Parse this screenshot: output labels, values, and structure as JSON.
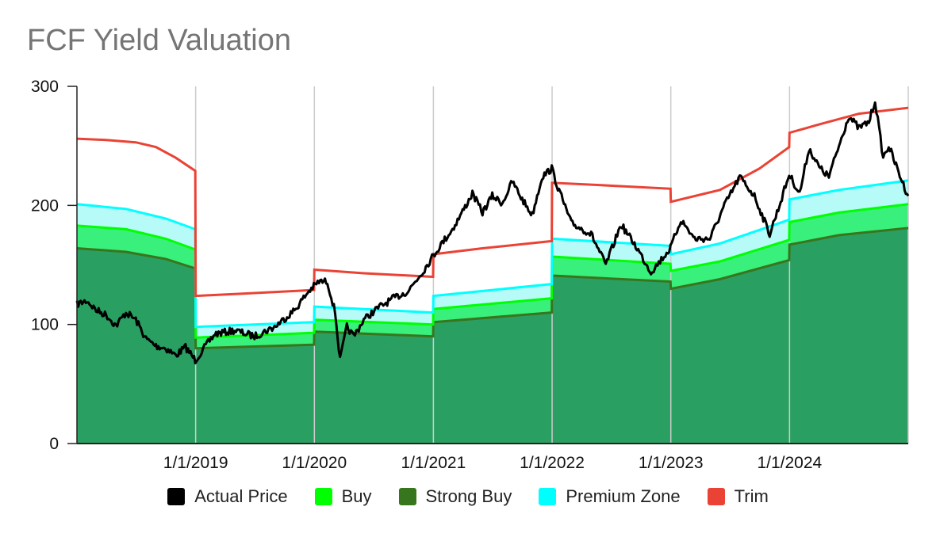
{
  "chart_data": {
    "type": "area",
    "title": "FCF Yield Valuation",
    "ylim": [
      0,
      300
    ],
    "yticks": [
      0,
      100,
      200,
      300
    ],
    "xlim": [
      "2018-01-01",
      "2024-12-31"
    ],
    "xticks": [
      "1/1/2019",
      "1/1/2020",
      "1/1/2021",
      "1/1/2022",
      "1/1/2023",
      "1/1/2024"
    ],
    "grid": "vertical",
    "legend_position": "bottom",
    "colors": {
      "actual_price": "#000000",
      "buy": "#00ff00",
      "strong_buy": "#38761d",
      "premium_zone": "#00ffff",
      "trim": "#ea4335",
      "strong_buy_fill": "#2a9f62",
      "buy_fill": "#39f07c",
      "premium_fill": "#b6fbf7",
      "axis": "#222222",
      "grid": "#cccccc"
    },
    "series": [
      {
        "name": "Trim",
        "key": "trim",
        "points": [
          [
            "2018-01-01",
            256
          ],
          [
            "2018-04-01",
            255
          ],
          [
            "2018-07-01",
            253
          ],
          [
            "2018-09-01",
            249
          ],
          [
            "2018-11-01",
            240
          ],
          [
            "2018-12-31",
            229
          ],
          [
            "2019-01-01",
            124
          ],
          [
            "2019-06-01",
            126
          ],
          [
            "2019-12-31",
            129
          ],
          [
            "2020-01-01",
            146
          ],
          [
            "2020-06-01",
            143
          ],
          [
            "2020-12-31",
            140
          ],
          [
            "2021-01-01",
            159
          ],
          [
            "2021-06-01",
            164
          ],
          [
            "2021-12-31",
            170
          ],
          [
            "2022-01-01",
            219
          ],
          [
            "2022-06-01",
            217
          ],
          [
            "2022-12-31",
            214
          ],
          [
            "2023-01-01",
            203
          ],
          [
            "2023-06-01",
            213
          ],
          [
            "2023-10-01",
            231
          ],
          [
            "2023-12-31",
            249
          ],
          [
            "2024-01-01",
            261
          ],
          [
            "2024-04-01",
            268
          ],
          [
            "2024-08-01",
            277
          ],
          [
            "2024-12-31",
            282
          ]
        ]
      },
      {
        "name": "Premium Zone",
        "key": "premium_zone",
        "points": [
          [
            "2018-01-01",
            201
          ],
          [
            "2018-06-01",
            197
          ],
          [
            "2018-10-01",
            189
          ],
          [
            "2018-12-31",
            180
          ],
          [
            "2019-01-01",
            98
          ],
          [
            "2019-12-31",
            102
          ],
          [
            "2020-01-01",
            115
          ],
          [
            "2020-12-31",
            110
          ],
          [
            "2021-01-01",
            124
          ],
          [
            "2021-12-31",
            134
          ],
          [
            "2022-01-01",
            172
          ],
          [
            "2022-12-31",
            166
          ],
          [
            "2023-01-01",
            159
          ],
          [
            "2023-06-01",
            168
          ],
          [
            "2023-12-31",
            188
          ],
          [
            "2024-01-01",
            205
          ],
          [
            "2024-06-01",
            213
          ],
          [
            "2024-12-31",
            221
          ]
        ]
      },
      {
        "name": "Buy",
        "key": "buy",
        "points": [
          [
            "2018-01-01",
            183
          ],
          [
            "2018-06-01",
            180
          ],
          [
            "2018-10-01",
            172
          ],
          [
            "2018-12-31",
            163
          ],
          [
            "2019-01-01",
            89
          ],
          [
            "2019-12-31",
            93
          ],
          [
            "2020-01-01",
            104
          ],
          [
            "2020-12-31",
            100
          ],
          [
            "2021-01-01",
            113
          ],
          [
            "2021-12-31",
            122
          ],
          [
            "2022-01-01",
            157
          ],
          [
            "2022-12-31",
            151
          ],
          [
            "2023-01-01",
            145
          ],
          [
            "2023-06-01",
            153
          ],
          [
            "2023-12-31",
            171
          ],
          [
            "2024-01-01",
            186
          ],
          [
            "2024-06-01",
            194
          ],
          [
            "2024-12-31",
            201
          ]
        ]
      },
      {
        "name": "Strong Buy",
        "key": "strong_buy",
        "points": [
          [
            "2018-01-01",
            164
          ],
          [
            "2018-06-01",
            161
          ],
          [
            "2018-10-01",
            155
          ],
          [
            "2018-12-31",
            147
          ],
          [
            "2019-01-01",
            80
          ],
          [
            "2019-12-31",
            83
          ],
          [
            "2020-01-01",
            94
          ],
          [
            "2020-12-31",
            90
          ],
          [
            "2021-01-01",
            102
          ],
          [
            "2021-12-31",
            110
          ],
          [
            "2022-01-01",
            141
          ],
          [
            "2022-12-31",
            136
          ],
          [
            "2023-01-01",
            130
          ],
          [
            "2023-06-01",
            138
          ],
          [
            "2023-12-31",
            154
          ],
          [
            "2024-01-01",
            167
          ],
          [
            "2024-06-01",
            175
          ],
          [
            "2024-12-31",
            181
          ]
        ]
      },
      {
        "name": "Actual Price",
        "key": "actual_price",
        "points": [
          [
            "2018-01-01",
            117
          ],
          [
            "2018-02-01",
            120
          ],
          [
            "2018-03-01",
            112
          ],
          [
            "2018-04-01",
            108
          ],
          [
            "2018-05-01",
            99
          ],
          [
            "2018-06-01",
            110
          ],
          [
            "2018-07-01",
            104
          ],
          [
            "2018-08-01",
            88
          ],
          [
            "2018-09-01",
            82
          ],
          [
            "2018-10-01",
            80
          ],
          [
            "2018-11-01",
            74
          ],
          [
            "2018-12-01",
            81
          ],
          [
            "2018-12-31",
            70
          ],
          [
            "2019-02-01",
            82
          ],
          [
            "2019-03-01",
            92
          ],
          [
            "2019-05-01",
            95
          ],
          [
            "2019-07-01",
            90
          ],
          [
            "2019-09-01",
            98
          ],
          [
            "2019-11-01",
            112
          ],
          [
            "2019-12-15",
            128
          ],
          [
            "2020-01-15",
            136
          ],
          [
            "2020-02-10",
            136
          ],
          [
            "2020-03-05",
            110
          ],
          [
            "2020-03-20",
            70
          ],
          [
            "2020-04-10",
            98
          ],
          [
            "2020-05-01",
            90
          ],
          [
            "2020-06-01",
            104
          ],
          [
            "2020-07-15",
            114
          ],
          [
            "2020-09-01",
            122
          ],
          [
            "2020-10-15",
            128
          ],
          [
            "2020-12-01",
            145
          ],
          [
            "2021-01-01",
            158
          ],
          [
            "2021-02-01",
            170
          ],
          [
            "2021-03-01",
            180
          ],
          [
            "2021-04-01",
            195
          ],
          [
            "2021-05-01",
            210
          ],
          [
            "2021-06-01",
            194
          ],
          [
            "2021-07-01",
            208
          ],
          [
            "2021-08-01",
            202
          ],
          [
            "2021-09-01",
            220
          ],
          [
            "2021-10-01",
            205
          ],
          [
            "2021-11-01",
            192
          ],
          [
            "2021-12-01",
            224
          ],
          [
            "2021-12-31",
            231
          ],
          [
            "2022-01-15",
            218
          ],
          [
            "2022-03-01",
            185
          ],
          [
            "2022-05-01",
            176
          ],
          [
            "2022-06-15",
            150
          ],
          [
            "2022-08-01",
            184
          ],
          [
            "2022-09-15",
            166
          ],
          [
            "2022-11-01",
            144
          ],
          [
            "2022-12-31",
            164
          ],
          [
            "2023-02-01",
            188
          ],
          [
            "2023-03-15",
            172
          ],
          [
            "2023-05-01",
            172
          ],
          [
            "2023-06-15",
            200
          ],
          [
            "2023-08-01",
            224
          ],
          [
            "2023-09-15",
            208
          ],
          [
            "2023-11-01",
            176
          ],
          [
            "2023-12-01",
            200
          ],
          [
            "2023-12-31",
            226
          ],
          [
            "2024-02-01",
            210
          ],
          [
            "2024-03-01",
            248
          ],
          [
            "2024-04-01",
            232
          ],
          [
            "2024-05-01",
            224
          ],
          [
            "2024-06-01",
            250
          ],
          [
            "2024-07-01",
            275
          ],
          [
            "2024-08-01",
            265
          ],
          [
            "2024-09-01",
            270
          ],
          [
            "2024-09-20",
            288
          ],
          [
            "2024-10-15",
            240
          ],
          [
            "2024-11-01",
            250
          ],
          [
            "2024-12-01",
            228
          ],
          [
            "2024-12-20",
            215
          ],
          [
            "2024-12-31",
            208
          ]
        ]
      }
    ]
  },
  "legend": [
    {
      "label": "Actual Price",
      "color": "#000000"
    },
    {
      "label": "Buy",
      "color": "#00ff00"
    },
    {
      "label": "Strong Buy",
      "color": "#38761d"
    },
    {
      "label": "Premium Zone",
      "color": "#00ffff"
    },
    {
      "label": "Trim",
      "color": "#ea4335"
    }
  ]
}
